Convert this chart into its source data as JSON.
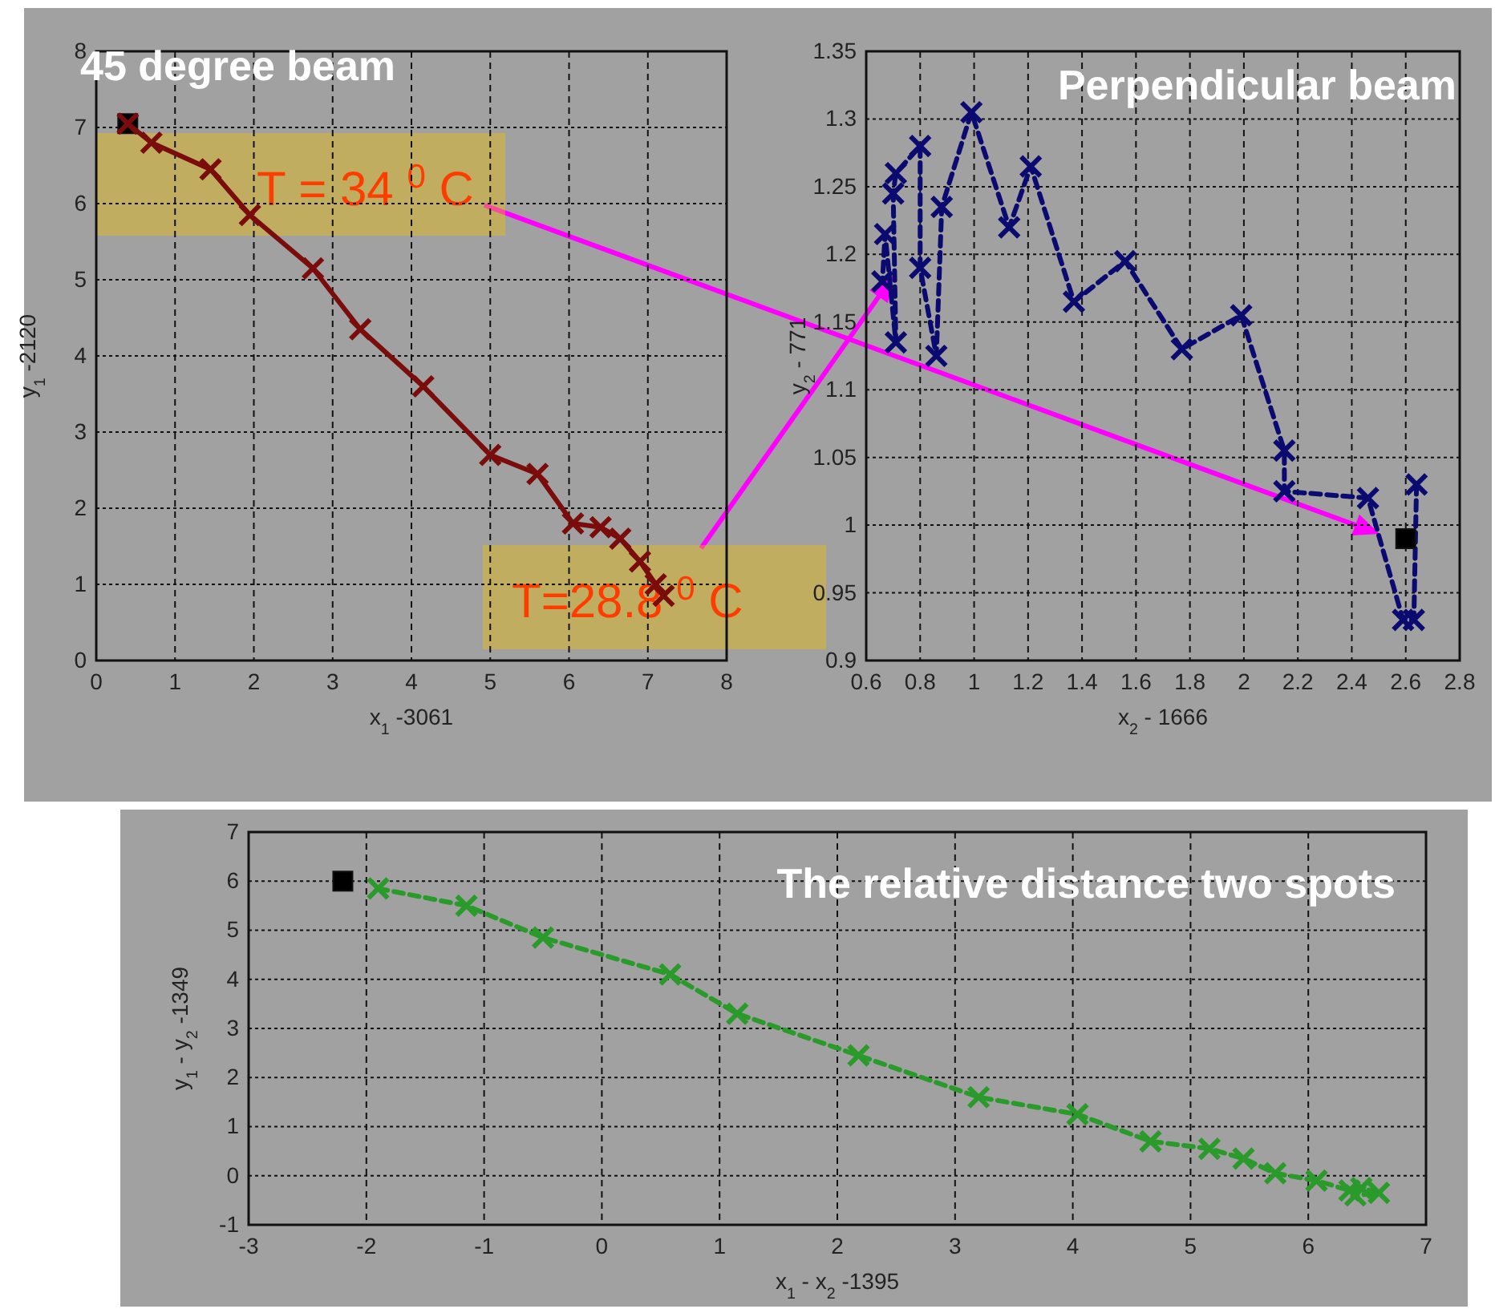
{
  "chart_data": [
    {
      "type": "line",
      "title": "45 degree beam",
      "xlabel": "x$_{1}$ -3061",
      "ylabel": "y$_{1}$ -2120",
      "xlim": [
        0,
        8
      ],
      "xticks": [
        0,
        1,
        2,
        3,
        4,
        5,
        6,
        7,
        8
      ],
      "ylim": [
        0,
        8
      ],
      "yticks": [
        0,
        1,
        2,
        3,
        4,
        5,
        6,
        7,
        8
      ],
      "grid": true,
      "annotations": [
        "T = 34 $^{0}$ C",
        "T=28.8 $^{0}$ C"
      ],
      "series": [
        {
          "type": "scatter",
          "color": "#000000",
          "marker": "square",
          "x": [
            0.4
          ],
          "values": [
            7.05
          ]
        },
        {
          "type": "line",
          "color": "#7a0c0c",
          "marker": "cross",
          "line_style": "solid",
          "x": [
            0.4,
            0.7,
            1.45,
            1.95,
            2.75,
            3.35,
            4.15,
            5.0,
            5.6,
            6.05,
            6.4,
            6.65,
            6.9,
            7.1,
            7.2
          ],
          "values": [
            7.05,
            6.8,
            6.45,
            5.85,
            5.15,
            4.35,
            3.6,
            2.7,
            2.45,
            1.8,
            1.75,
            1.6,
            1.3,
            1.0,
            0.85
          ]
        }
      ]
    },
    {
      "type": "line",
      "title": "Perpendicular beam",
      "xlabel": "x$_{2}$ - 1666",
      "ylabel": "y$_{2}$ - 771",
      "xlim": [
        0.6,
        2.8
      ],
      "xticks": [
        0.6,
        0.8,
        1,
        1.2,
        1.4,
        1.6,
        1.8,
        2,
        2.2,
        2.4,
        2.6,
        2.8
      ],
      "ylim": [
        0.9,
        1.35
      ],
      "yticks": [
        0.9,
        0.95,
        1,
        1.05,
        1.1,
        1.15,
        1.2,
        1.25,
        1.3,
        1.35
      ],
      "grid": true,
      "series": [
        {
          "type": "line",
          "color": "#0a0a70",
          "marker": "cross",
          "line_style": "dashed",
          "x": [
            2.64,
            2.63,
            2.59,
            2.46,
            2.15,
            2.15,
            1.99,
            1.77,
            1.56,
            1.37,
            1.21,
            1.13,
            0.99,
            0.88,
            0.86,
            0.8,
            0.8,
            0.71,
            0.7,
            0.71,
            0.67,
            0.66
          ],
          "values": [
            1.03,
            0.93,
            0.93,
            1.02,
            1.025,
            1.055,
            1.155,
            1.13,
            1.195,
            1.165,
            1.265,
            1.22,
            1.305,
            1.235,
            1.125,
            1.19,
            1.28,
            1.26,
            1.245,
            1.135,
            1.215,
            1.18
          ]
        },
        {
          "type": "scatter",
          "color": "#000000",
          "marker": "square",
          "x": [
            2.6
          ],
          "values": [
            0.99
          ]
        }
      ]
    },
    {
      "type": "line",
      "title": "The relative distance two spots",
      "xlabel": "x$_{1}$ - x$_{2}$ -1395",
      "ylabel": "y$_{1}$ - y$_{2}$ -1349",
      "xlim": [
        -3,
        7
      ],
      "xticks": [
        -3,
        -2,
        -1,
        0,
        1,
        2,
        3,
        4,
        5,
        6,
        7
      ],
      "ylim": [
        -1,
        7
      ],
      "yticks": [
        -1,
        0,
        1,
        2,
        3,
        4,
        5,
        6,
        7
      ],
      "grid": true,
      "series": [
        {
          "type": "line",
          "color": "#2a9a2a",
          "marker": "cross",
          "line_style": "dashed",
          "x": [
            -1.9,
            -1.15,
            -0.5,
            0.58,
            1.15,
            2.18,
            3.2,
            4.04,
            4.66,
            5.16,
            5.45,
            5.72,
            6.07,
            6.35,
            6.45,
            6.6,
            6.4
          ],
          "values": [
            5.85,
            5.5,
            4.85,
            4.1,
            3.3,
            2.45,
            1.6,
            1.25,
            0.7,
            0.55,
            0.35,
            0.05,
            -0.1,
            -0.3,
            -0.25,
            -0.35,
            -0.4
          ]
        },
        {
          "type": "scatter",
          "color": "#000000",
          "marker": "square",
          "x": [
            -2.2
          ],
          "values": [
            6.0
          ]
        }
      ]
    }
  ]
}
